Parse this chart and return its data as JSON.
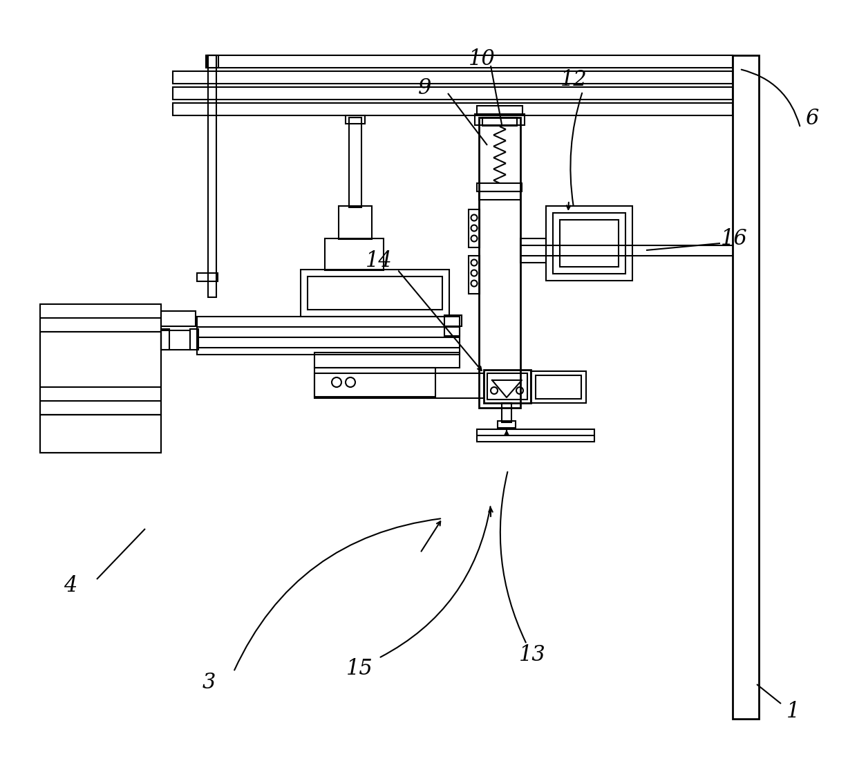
{
  "bg_color": "#ffffff",
  "line_color": "#000000",
  "lw": 1.5,
  "lw2": 2.0,
  "fs": 22
}
